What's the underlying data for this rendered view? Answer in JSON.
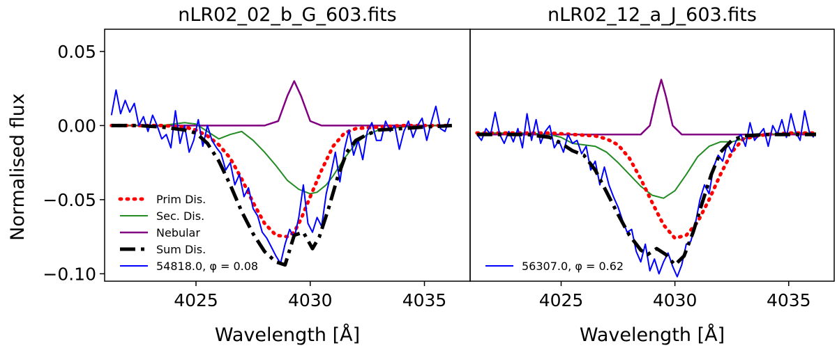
{
  "chart_data": {
    "type": "line",
    "ylabel": "Normalised flux",
    "xlabel": "Wavelength [Å]",
    "xlim": [
      4021,
      4037
    ],
    "ylim": [
      -0.105,
      0.065
    ],
    "xticks": [
      4025,
      4030,
      4035
    ],
    "yticks": [
      -0.1,
      -0.05,
      0.0,
      0.05
    ],
    "ytick_labels": [
      "−0.10",
      "−0.05",
      "0.00",
      "0.05"
    ],
    "xtick_labels": [
      "4025",
      "4030",
      "4035"
    ],
    "grid": false,
    "legend_position": "lower-left",
    "colors": {
      "Prim Dis.": "#ff0000",
      "Sec. Dis.": "#228b22",
      "Nebular": "#800080",
      "Sum Dis.": "#000000",
      "Observed": "#0000ff"
    },
    "panels": [
      {
        "title": "nLR02_02_b_G_603.fits",
        "legend": [
          {
            "label": "Prim Dis.",
            "series": 0
          },
          {
            "label": "Sec. Dis.",
            "series": 1
          },
          {
            "label": "Nebular",
            "series": 2
          },
          {
            "label": "Sum Dis.",
            "series": 3
          },
          {
            "label": "54818.0, φ = 0.08",
            "series": 4
          }
        ],
        "series": [
          {
            "name": "Prim Dis.",
            "x": [
              4021.3,
              4022.5,
              4023.5,
              4024.5,
              4025.0,
              4025.5,
              4026.0,
              4026.5,
              4027.0,
              4027.5,
              4028.0,
              4028.5,
              4029.0,
              4029.3,
              4029.6,
              4030.0,
              4030.5,
              4031.0,
              4031.5,
              4032.0,
              4033.0,
              4034.0,
              4035.0,
              4036.2
            ],
            "y": [
              0.0,
              0.0,
              0.0,
              -0.001,
              -0.003,
              -0.007,
              -0.013,
              -0.022,
              -0.036,
              -0.052,
              -0.066,
              -0.074,
              -0.075,
              -0.072,
              -0.063,
              -0.048,
              -0.03,
              -0.014,
              -0.005,
              -0.002,
              -0.001,
              0.0,
              0.0,
              0.0
            ]
          },
          {
            "name": "Sec. Dis.",
            "x": [
              4021.3,
              4022.5,
              4023.5,
              4024.0,
              4024.5,
              4025.0,
              4025.5,
              4026.0,
              4026.5,
              4027.0,
              4027.5,
              4028.0,
              4028.5,
              4029.0,
              4029.5,
              4030.0,
              4030.3,
              4030.7,
              4031.0,
              4031.5,
              4032.0,
              4032.5,
              4033.0,
              4034.0,
              4035.0,
              4036.2
            ],
            "y": [
              0.0,
              0.0,
              0.0,
              0.001,
              0.002,
              0.001,
              -0.004,
              -0.009,
              -0.006,
              -0.004,
              -0.01,
              -0.018,
              -0.027,
              -0.037,
              -0.043,
              -0.046,
              -0.045,
              -0.04,
              -0.034,
              -0.022,
              -0.012,
              -0.006,
              -0.003,
              -0.001,
              0.0,
              0.0
            ]
          },
          {
            "name": "Nebular",
            "x": [
              4021.3,
              4028.0,
              4028.6,
              4029.0,
              4029.3,
              4029.6,
              4030.0,
              4030.5,
              4036.2
            ],
            "y": [
              0.0,
              0.0,
              0.003,
              0.02,
              0.03,
              0.02,
              0.003,
              0.0,
              0.0
            ]
          },
          {
            "name": "Sum Dis.",
            "x": [
              4021.3,
              4022.5,
              4023.5,
              4024.5,
              4025.0,
              4025.5,
              4026.0,
              4026.5,
              4027.0,
              4027.5,
              4028.0,
              4028.5,
              4028.9,
              4029.3,
              4029.7,
              4030.1,
              4030.4,
              4030.8,
              4031.2,
              4031.6,
              4032.0,
              4032.5,
              4033.0,
              4034.0,
              4035.0,
              4036.2
            ],
            "y": [
              0.0,
              0.0,
              -0.001,
              -0.003,
              -0.005,
              -0.012,
              -0.024,
              -0.04,
              -0.058,
              -0.073,
              -0.085,
              -0.092,
              -0.094,
              -0.074,
              -0.072,
              -0.083,
              -0.075,
              -0.056,
              -0.035,
              -0.018,
              -0.01,
              -0.006,
              -0.003,
              -0.002,
              -0.001,
              0.0
            ]
          },
          {
            "name": "54818.0, φ = 0.08",
            "x": [
              4021.3,
              4021.5,
              4021.7,
              4021.9,
              4022.1,
              4022.3,
              4022.5,
              4022.7,
              4022.9,
              4023.1,
              4023.3,
              4023.5,
              4023.7,
              4023.9,
              4024.1,
              4024.3,
              4024.5,
              4024.7,
              4024.9,
              4025.1,
              4025.3,
              4025.5,
              4025.7,
              4025.9,
              4026.1,
              4026.3,
              4026.5,
              4026.7,
              4026.9,
              4027.1,
              4027.3,
              4027.5,
              4027.7,
              4027.9,
              4028.1,
              4028.3,
              4028.5,
              4028.7,
              4028.9,
              4029.1,
              4029.3,
              4029.5,
              4029.7,
              4029.9,
              4030.1,
              4030.3,
              4030.5,
              4030.7,
              4030.9,
              4031.1,
              4031.3,
              4031.5,
              4031.7,
              4031.9,
              4032.1,
              4032.3,
              4032.5,
              4032.7,
              4032.9,
              4033.1,
              4033.3,
              4033.5,
              4033.7,
              4033.9,
              4034.1,
              4034.3,
              4034.5,
              4034.7,
              4034.9,
              4035.1,
              4035.3,
              4035.5,
              4035.7,
              4035.9,
              4036.1
            ],
            "y": [
              0.007,
              0.024,
              0.008,
              0.017,
              0.009,
              0.015,
              0.0,
              0.006,
              -0.004,
              0.007,
              0.0,
              -0.009,
              -0.006,
              -0.015,
              0.01,
              -0.012,
              0.0,
              -0.018,
              -0.01,
              0.004,
              -0.014,
              0.0,
              -0.01,
              -0.015,
              -0.019,
              -0.03,
              -0.025,
              -0.04,
              -0.033,
              -0.048,
              -0.042,
              -0.056,
              -0.061,
              -0.072,
              -0.076,
              -0.082,
              -0.088,
              -0.093,
              -0.08,
              -0.07,
              -0.076,
              -0.062,
              -0.04,
              -0.066,
              -0.072,
              -0.062,
              -0.068,
              -0.046,
              -0.033,
              -0.018,
              -0.038,
              -0.016,
              -0.003,
              -0.02,
              -0.01,
              -0.023,
              -0.004,
              0.002,
              -0.01,
              -0.01,
              0.003,
              -0.004,
              0.0,
              -0.016,
              -0.004,
              0.003,
              -0.008,
              0.0,
              0.005,
              -0.01,
              0.002,
              0.013,
              -0.002,
              -0.004,
              0.005
            ]
          }
        ]
      },
      {
        "title": "nLR02_12_a_J_603.fits",
        "legend": [
          {
            "label": "56307.0, φ = 0.62",
            "series": 4
          }
        ],
        "series": [
          {
            "name": "Prim Dis.",
            "x": [
              4021.3,
              4022.5,
              4023.5,
              4024.5,
              4025.5,
              4026.5,
              4027.0,
              4027.5,
              4028.0,
              4028.5,
              4029.0,
              4029.5,
              4030.0,
              4030.5,
              4031.0,
              4031.5,
              4032.0,
              4032.5,
              4033.0,
              4034.0,
              4035.0,
              4036.2
            ],
            "y": [
              -0.005,
              -0.005,
              -0.005,
              -0.005,
              -0.006,
              -0.007,
              -0.009,
              -0.013,
              -0.022,
              -0.036,
              -0.052,
              -0.067,
              -0.076,
              -0.074,
              -0.065,
              -0.05,
              -0.033,
              -0.018,
              -0.009,
              -0.006,
              -0.005,
              -0.005
            ]
          },
          {
            "name": "Sec. Dis.",
            "x": [
              4021.3,
              4023.5,
              4024.5,
              4025.0,
              4025.5,
              4026.0,
              4026.5,
              4027.0,
              4027.5,
              4028.0,
              4028.5,
              4029.0,
              4029.5,
              4030.0,
              4030.5,
              4031.0,
              4031.5,
              4032.0,
              4032.5,
              4033.0,
              4034.0,
              4035.0,
              4036.2
            ],
            "y": [
              -0.005,
              -0.005,
              -0.006,
              -0.008,
              -0.012,
              -0.013,
              -0.014,
              -0.018,
              -0.025,
              -0.033,
              -0.041,
              -0.047,
              -0.049,
              -0.044,
              -0.033,
              -0.021,
              -0.014,
              -0.011,
              -0.011,
              -0.009,
              -0.006,
              -0.005,
              -0.005
            ]
          },
          {
            "name": "Nebular",
            "x": [
              4021.3,
              4028.5,
              4028.9,
              4029.2,
              4029.4,
              4029.6,
              4029.9,
              4030.3,
              4036.2
            ],
            "y": [
              -0.006,
              -0.006,
              0.0,
              0.02,
              0.031,
              0.02,
              0.0,
              -0.006,
              -0.006
            ]
          },
          {
            "name": "Sum Dis.",
            "x": [
              4021.3,
              4022.5,
              4023.5,
              4024.5,
              4025.0,
              4025.5,
              4026.0,
              4026.5,
              4027.0,
              4027.5,
              4028.0,
              4028.5,
              4028.8,
              4029.2,
              4029.6,
              4030.0,
              4030.4,
              4030.8,
              4031.2,
              4031.6,
              4032.0,
              4032.5,
              4033.0,
              4034.0,
              4035.0,
              4036.2
            ],
            "y": [
              -0.006,
              -0.006,
              -0.006,
              -0.008,
              -0.012,
              -0.017,
              -0.02,
              -0.03,
              -0.045,
              -0.06,
              -0.074,
              -0.084,
              -0.087,
              -0.083,
              -0.087,
              -0.094,
              -0.088,
              -0.072,
              -0.052,
              -0.033,
              -0.018,
              -0.01,
              -0.007,
              -0.006,
              -0.006,
              -0.006
            ]
          },
          {
            "name": "56307.0, φ = 0.62",
            "x": [
              4021.3,
              4021.5,
              4021.7,
              4021.9,
              4022.1,
              4022.3,
              4022.5,
              4022.7,
              4022.9,
              4023.1,
              4023.3,
              4023.5,
              4023.7,
              4023.9,
              4024.1,
              4024.3,
              4024.5,
              4024.7,
              4024.9,
              4025.1,
              4025.3,
              4025.5,
              4025.7,
              4025.9,
              4026.1,
              4026.3,
              4026.5,
              4026.7,
              4026.9,
              4027.1,
              4027.3,
              4027.5,
              4027.7,
              4027.9,
              4028.1,
              4028.3,
              4028.5,
              4028.7,
              4028.9,
              4029.1,
              4029.3,
              4029.5,
              4029.7,
              4029.9,
              4030.1,
              4030.3,
              4030.5,
              4030.7,
              4030.9,
              4031.1,
              4031.3,
              4031.5,
              4031.7,
              4031.9,
              4032.1,
              4032.3,
              4032.5,
              4032.7,
              4032.9,
              4033.1,
              4033.3,
              4033.5,
              4033.7,
              4033.9,
              4034.1,
              4034.3,
              4034.5,
              4034.7,
              4034.9,
              4035.1,
              4035.3,
              4035.5,
              4035.7,
              4035.9,
              4036.1
            ],
            "y": [
              -0.006,
              -0.01,
              -0.002,
              -0.006,
              0.009,
              -0.006,
              -0.012,
              -0.004,
              -0.011,
              -0.002,
              -0.015,
              0.008,
              -0.01,
              0.004,
              -0.012,
              -0.004,
              0.0,
              -0.015,
              -0.01,
              -0.018,
              -0.006,
              -0.012,
              -0.01,
              -0.019,
              -0.014,
              -0.03,
              -0.024,
              -0.04,
              -0.028,
              -0.04,
              -0.048,
              -0.055,
              -0.064,
              -0.072,
              -0.07,
              -0.085,
              -0.092,
              -0.08,
              -0.098,
              -0.09,
              -0.1,
              -0.092,
              -0.086,
              -0.095,
              -0.102,
              -0.094,
              -0.08,
              -0.078,
              -0.066,
              -0.05,
              -0.04,
              -0.046,
              -0.028,
              -0.02,
              -0.024,
              -0.012,
              -0.018,
              -0.01,
              -0.006,
              -0.014,
              0.002,
              -0.01,
              -0.006,
              -0.002,
              -0.014,
              0.0,
              -0.006,
              0.004,
              -0.008,
              0.008,
              -0.004,
              -0.01,
              0.01,
              -0.004,
              -0.008
            ]
          }
        ]
      }
    ]
  }
}
